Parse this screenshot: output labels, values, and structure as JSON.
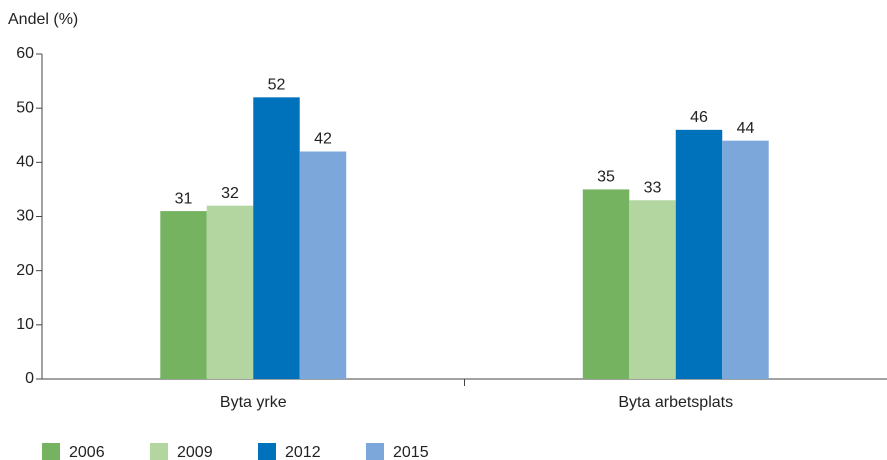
{
  "chart_data": {
    "type": "bar",
    "y_axis_label": "Andel (%)",
    "categories": [
      "Byta yrke",
      "Byta arbetsplats"
    ],
    "series": [
      {
        "name": "2006",
        "color": "#76b361",
        "values": [
          31,
          35
        ]
      },
      {
        "name": "2009",
        "color": "#b3d6a0",
        "values": [
          32,
          33
        ]
      },
      {
        "name": "2012",
        "color": "#0072bc",
        "values": [
          52,
          46
        ]
      },
      {
        "name": "2015",
        "color": "#7ba7da",
        "values": [
          42,
          44
        ]
      }
    ],
    "ylim": [
      0,
      60
    ],
    "yticks": [
      0,
      10,
      20,
      30,
      40,
      50,
      60
    ],
    "grid": false,
    "legend": "bottom"
  }
}
